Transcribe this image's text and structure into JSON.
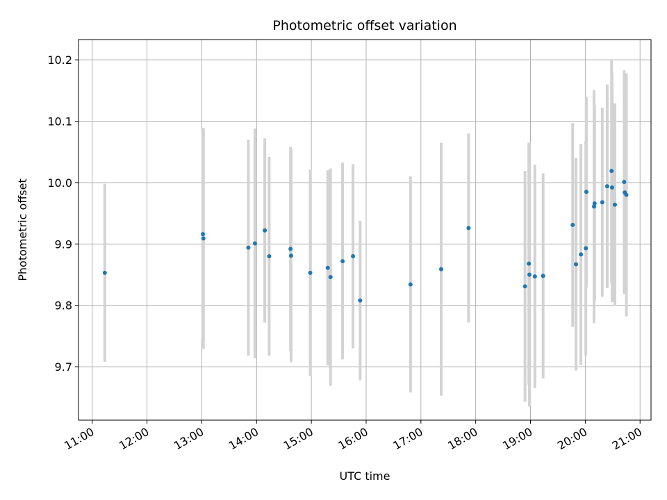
{
  "chart_data": {
    "type": "scatter",
    "title": "Photometric offset variation",
    "xlabel": "UTC time",
    "ylabel": "Photometric offset",
    "x_unit": "hour of day (UTC)",
    "xlim": [
      10.75,
      21.2
    ],
    "ylim": [
      9.613,
      10.233
    ],
    "x_ticks": [
      11,
      12,
      13,
      14,
      15,
      16,
      17,
      18,
      19,
      20,
      21
    ],
    "x_tick_labels": [
      "11:00",
      "12:00",
      "13:00",
      "14:00",
      "15:00",
      "16:00",
      "17:00",
      "18:00",
      "19:00",
      "20:00",
      "21:00"
    ],
    "y_ticks": [
      9.7,
      9.8,
      9.9,
      10.0,
      10.1,
      10.2
    ],
    "y_tick_labels": [
      "9.7",
      "9.8",
      "9.9",
      "10.0",
      "10.1",
      "10.2"
    ],
    "grid": true,
    "marker_color": "#1f77b4",
    "errorbar_color": "#d3d3d3",
    "points": [
      {
        "x": 11.23,
        "y": 9.853,
        "err": 0.145
      },
      {
        "x": 13.02,
        "y": 9.916,
        "err": 0.17
      },
      {
        "x": 13.03,
        "y": 9.909,
        "err": 0.18
      },
      {
        "x": 13.85,
        "y": 9.894,
        "err": 0.176
      },
      {
        "x": 13.97,
        "y": 9.901,
        "err": 0.187
      },
      {
        "x": 14.15,
        "y": 9.922,
        "err": 0.15
      },
      {
        "x": 14.23,
        "y": 9.88,
        "err": 0.162
      },
      {
        "x": 14.62,
        "y": 9.892,
        "err": 0.166
      },
      {
        "x": 14.63,
        "y": 9.881,
        "err": 0.174
      },
      {
        "x": 14.98,
        "y": 9.853,
        "err": 0.168
      },
      {
        "x": 15.3,
        "y": 9.861,
        "err": 0.159
      },
      {
        "x": 15.35,
        "y": 9.846,
        "err": 0.177
      },
      {
        "x": 15.57,
        "y": 9.872,
        "err": 0.16
      },
      {
        "x": 15.76,
        "y": 9.88,
        "err": 0.15
      },
      {
        "x": 15.89,
        "y": 9.808,
        "err": 0.13
      },
      {
        "x": 16.81,
        "y": 9.834,
        "err": 0.176
      },
      {
        "x": 17.37,
        "y": 9.859,
        "err": 0.206
      },
      {
        "x": 17.87,
        "y": 9.926,
        "err": 0.154
      },
      {
        "x": 18.9,
        "y": 9.831,
        "err": 0.188
      },
      {
        "x": 18.97,
        "y": 9.868,
        "err": 0.197
      },
      {
        "x": 18.98,
        "y": 9.85,
        "err": 0.215
      },
      {
        "x": 19.08,
        "y": 9.847,
        "err": 0.182
      },
      {
        "x": 19.23,
        "y": 9.848,
        "err": 0.167
      },
      {
        "x": 19.77,
        "y": 9.931,
        "err": 0.166
      },
      {
        "x": 19.83,
        "y": 9.867,
        "err": 0.173
      },
      {
        "x": 19.92,
        "y": 9.883,
        "err": 0.18
      },
      {
        "x": 20.01,
        "y": 9.893,
        "err": 0.175
      },
      {
        "x": 20.02,
        "y": 9.985,
        "err": 0.155
      },
      {
        "x": 20.16,
        "y": 9.961,
        "err": 0.19
      },
      {
        "x": 20.17,
        "y": 9.966,
        "err": 0.16
      },
      {
        "x": 20.31,
        "y": 9.968,
        "err": 0.154
      },
      {
        "x": 20.4,
        "y": 9.994,
        "err": 0.166
      },
      {
        "x": 20.48,
        "y": 10.019,
        "err": 0.182
      },
      {
        "x": 20.49,
        "y": 9.992,
        "err": 0.187
      },
      {
        "x": 20.54,
        "y": 9.964,
        "err": 0.165
      },
      {
        "x": 20.71,
        "y": 10.001,
        "err": 0.182
      },
      {
        "x": 20.72,
        "y": 9.984,
        "err": 0.165
      },
      {
        "x": 20.75,
        "y": 9.98,
        "err": 0.198
      }
    ]
  }
}
